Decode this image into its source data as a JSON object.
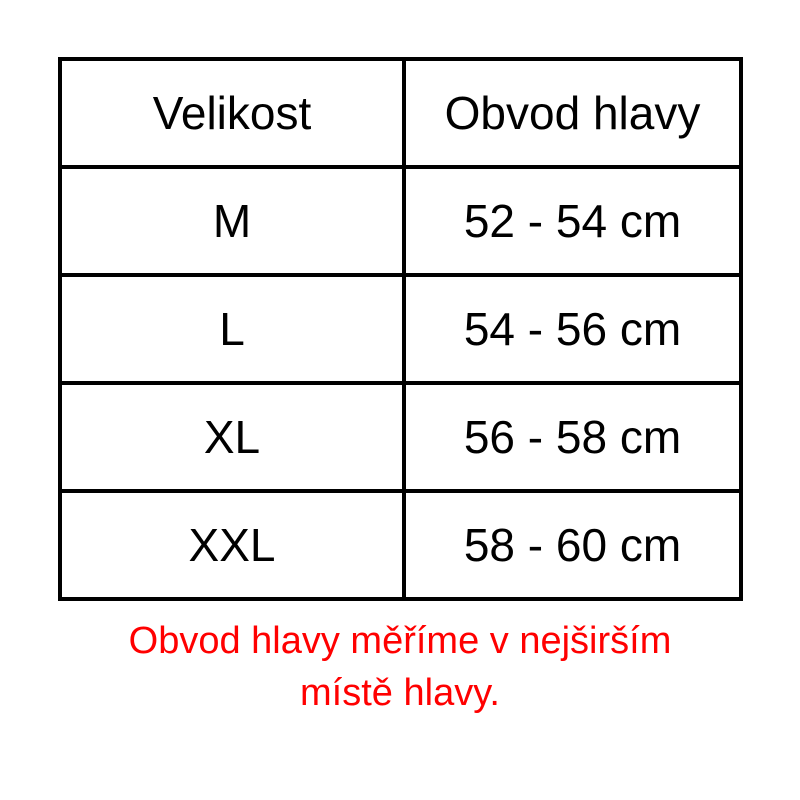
{
  "table": {
    "headers": [
      "Velikost",
      "Obvod hlavy"
    ],
    "rows": [
      [
        "M",
        "52 - 54 cm"
      ],
      [
        "L",
        "54 - 56 cm"
      ],
      [
        "XL",
        "56 - 58 cm"
      ],
      [
        "XXL",
        "58 - 60 cm"
      ]
    ]
  },
  "note": {
    "line1": "Obvod hlavy měříme v nejširším",
    "line2": "místě hlavy.",
    "color": "#ff0000"
  }
}
